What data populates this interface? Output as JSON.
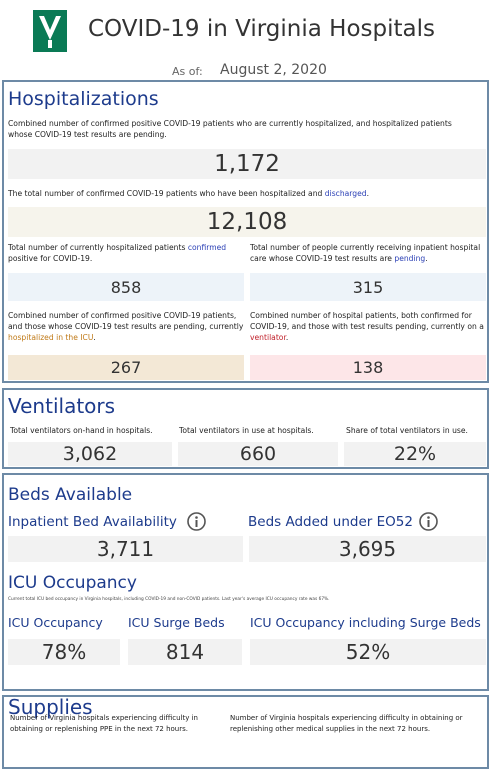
{
  "header": {
    "title": "COVID-19 in Virginia Hospitals",
    "as_of_label": "As of:",
    "date": "August 2, 2020"
  },
  "hospitalizations": {
    "title": "Hospitalizations",
    "current": {
      "desc": "Combined number of confirmed positive COVID-19 patients who are currently hospitalized, and hospitalized patients whose COVID-19 test results are pending.",
      "value": "1,172"
    },
    "discharged": {
      "desc": [
        "The total number of confirmed COVID-19 patients who have been hospitalized and ",
        "discharged",
        "."
      ],
      "value": "12,108"
    },
    "confirmed": {
      "desc": [
        "Total number of currently hospitalized patients ",
        "confirmed",
        " positive for COVID-19."
      ],
      "value": "858"
    },
    "pending": {
      "desc": [
        "Total number of people currently receiving inpatient hospital care whose COVID-19 test results are ",
        "pending",
        "."
      ],
      "value": "315"
    },
    "icu": {
      "desc": [
        "Combined number of confirmed positive COVID-19 patients, and those whose COVID-19 test results are pending, currently ",
        "hospitalized in the ICU",
        "."
      ],
      "value": "267"
    },
    "ventilator": {
      "desc": [
        "Combined number of hospital patients, both confirmed for COVID-19, and those with test results pending, currently on a ",
        "ventilator",
        "."
      ],
      "value": "138"
    }
  },
  "ventilators": {
    "title": "Ventilators",
    "items": [
      {
        "label": "Total ventilators on-hand in hospitals.",
        "value": "3,062"
      },
      {
        "label": "Total ventilators in use at hospitals.",
        "value": "660"
      },
      {
        "label": "Share of total ventilators in use.",
        "value": "22%"
      }
    ]
  },
  "beds": {
    "title": "Beds Available",
    "items": [
      {
        "label": "Inpatient Bed Availability",
        "value": "3,711"
      },
      {
        "label": "Beds Added under EO52",
        "value": "3,695"
      }
    ]
  },
  "icu_occupancy": {
    "title": "ICU Occupancy",
    "note": "Current total ICU bed occupancy in Virginia hospitals, including COVID-19 and non-COVID patients. Last year's average ICU occupancy rate was 67%.",
    "items": [
      {
        "label": "ICU Occupancy",
        "value": "78%"
      },
      {
        "label": "ICU Surge Beds",
        "value": "814"
      },
      {
        "label": "ICU Occupancy including Surge Beds",
        "value": "52%"
      }
    ]
  },
  "supplies": {
    "title": "Supplies",
    "items": [
      {
        "label": "Number of Virginia hospitals experiencing difficulty in obtaining or replenishing PPE in the next 72 hours."
      },
      {
        "label": "Number of Virginia hospitals experiencing difficulty in obtaining or replenishing other medical supplies in the next 72 hours."
      }
    ]
  }
}
